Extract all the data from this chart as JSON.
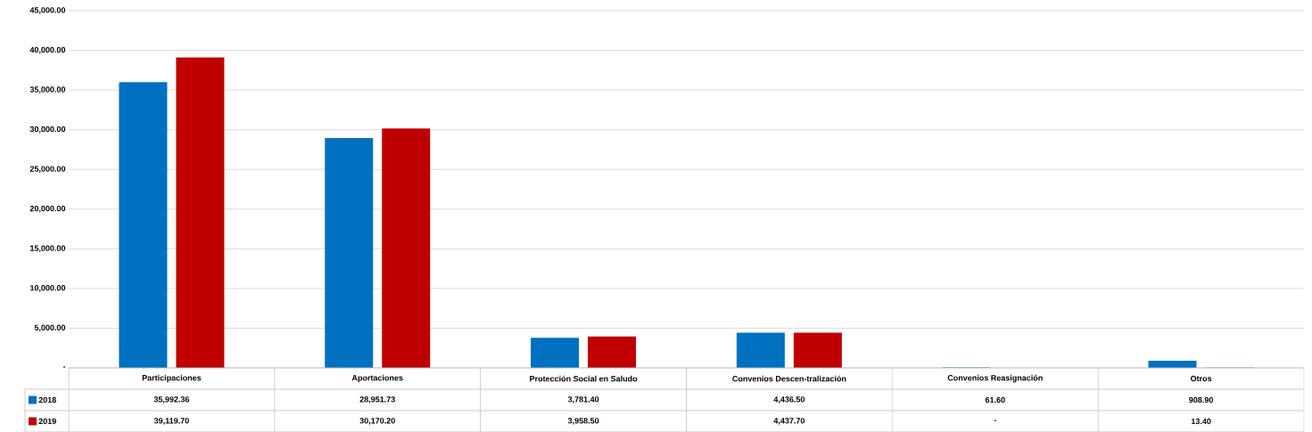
{
  "chart_data": {
    "type": "bar",
    "categories": [
      "Participaciones",
      "Aportaciones",
      "Protección Social en Saludo",
      "Convenios Descen-tralización",
      "Convenios Reasignación",
      "Otros"
    ],
    "series": [
      {
        "name": "2018",
        "color": "#0070c0",
        "values": [
          35992.36,
          28951.73,
          3781.4,
          4436.5,
          61.6,
          908.9
        ],
        "value_labels": [
          "35,992.36",
          "28,951.73",
          "3,781.40",
          "4,436.50",
          "61.60",
          "908.90"
        ]
      },
      {
        "name": "2019",
        "color": "#c00000",
        "values": [
          39119.7,
          30170.2,
          3958.5,
          4437.7,
          null,
          13.4
        ],
        "value_labels": [
          "39,119.70",
          "30,170.20",
          "3,958.50",
          "4,437.70",
          "-",
          "13.40"
        ]
      }
    ],
    "ylim": [
      0,
      45000
    ],
    "yticks": [
      {
        "value": 0,
        "label": "-"
      },
      {
        "value": 5000,
        "label": "5,000.00"
      },
      {
        "value": 10000,
        "label": "10,000.00"
      },
      {
        "value": 15000,
        "label": "15,000.00"
      },
      {
        "value": 20000,
        "label": "20,000.00"
      },
      {
        "value": 25000,
        "label": "25,000.00"
      },
      {
        "value": 30000,
        "label": "30,000.00"
      },
      {
        "value": 35000,
        "label": "35,000.00"
      },
      {
        "value": 40000,
        "label": "40,000.00"
      },
      {
        "value": 45000,
        "label": "45,000.00"
      }
    ],
    "grid": "y",
    "legend": "bottom"
  }
}
